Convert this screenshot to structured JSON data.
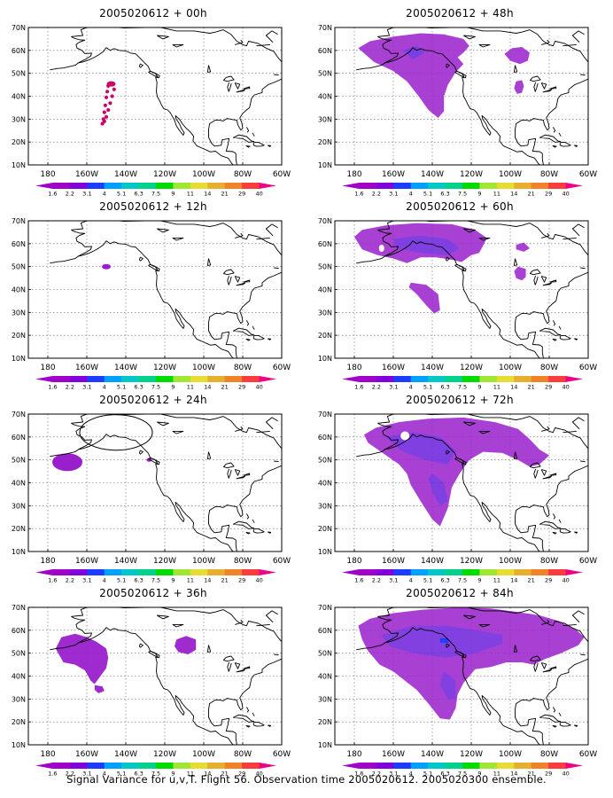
{
  "map": {
    "lat_labels": [
      "10N",
      "20N",
      "30N",
      "40N",
      "50N",
      "60N",
      "70N"
    ],
    "lon_labels": [
      "180",
      "160W",
      "140W",
      "120W",
      "100W",
      "80W",
      "60W"
    ],
    "lat_range": [
      10,
      70
    ],
    "lon_range": [
      -190,
      -60
    ]
  },
  "colorbar": {
    "labels": [
      "1.6",
      "2.2",
      "3.1",
      "4",
      "5.1",
      "6.3",
      "7.5",
      "9",
      "11",
      "14",
      "21",
      "29",
      "40"
    ],
    "colors": [
      "#a000c8",
      "#8200dc",
      "#1e3cff",
      "#00a0ff",
      "#00c8c8",
      "#00d28c",
      "#00dc00",
      "#a0e632",
      "#e6dc32",
      "#e6af2d",
      "#f08228",
      "#fa3c3c",
      "#f00082"
    ]
  },
  "panels": [
    {
      "title": "2005020612 + 00h",
      "col": 0,
      "row": 0
    },
    {
      "title": "2005020612 + 48h",
      "col": 1,
      "row": 0
    },
    {
      "title": "2005020612 + 12h",
      "col": 0,
      "row": 1
    },
    {
      "title": "2005020612 + 60h",
      "col": 1,
      "row": 1
    },
    {
      "title": "2005020612 + 24h",
      "col": 0,
      "row": 2
    },
    {
      "title": "2005020612 + 72h",
      "col": 1,
      "row": 2
    },
    {
      "title": "2005020612 + 36h",
      "col": 0,
      "row": 3
    },
    {
      "title": "2005020612 + 84h",
      "col": 1,
      "row": 3
    }
  ],
  "colors": {
    "main_fill": "#9a1fcc",
    "dark_fill": "#8a14c8",
    "blue_core": "#2040ff",
    "flight_track": "#cc0066"
  },
  "caption": "Signal Variance for u,v,T. Flight 56. Observation time 2005020612. 2005020300 ensemble."
}
